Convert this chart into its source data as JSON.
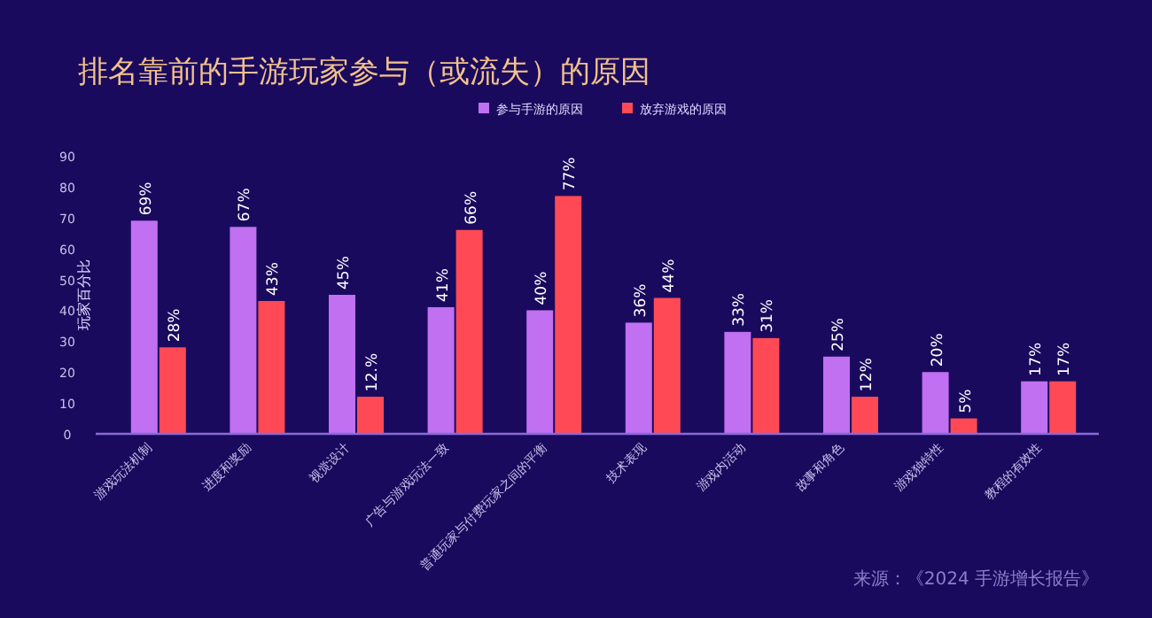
{
  "chart_data": {
    "type": "bar",
    "title": "排名靠前的手游玩家参与（或流失）的原因",
    "ylabel": "玩家百分比",
    "categories": [
      "游戏玩法机制",
      "进度和奖励",
      "视觉设计",
      "广告与游戏玩法一致",
      "普通玩家与付费玩家之间的平衡",
      "技术表现",
      "游戏内活动",
      "故事和角色",
      "游戏独特性",
      "教程的有效性"
    ],
    "series": [
      {
        "name": "参与手游的原因",
        "color": "#c070f0",
        "values": [
          69,
          67,
          45,
          41,
          40,
          36,
          33,
          25,
          20,
          17
        ],
        "value_labels": [
          "69%",
          "67%",
          "45%",
          "41%",
          "40%",
          "36%",
          "33%",
          "25%",
          "20%",
          "17%"
        ]
      },
      {
        "name": "放弃游戏的原因",
        "color": "#ff4a55",
        "values": [
          28,
          43,
          12,
          66,
          77,
          44,
          31,
          12,
          5,
          17
        ],
        "value_labels": [
          "28%",
          "43%",
          "12.%",
          "66%",
          "77%",
          "44%",
          "31%",
          "12%",
          "5%",
          "17%"
        ]
      }
    ],
    "ylim": [
      0,
      90
    ],
    "yticks": [
      0,
      10,
      20,
      30,
      40,
      50,
      60,
      70,
      80,
      90
    ],
    "grid": false,
    "legend": "top",
    "annotations": [
      "来源：《2024 手游增长报告》"
    ]
  }
}
